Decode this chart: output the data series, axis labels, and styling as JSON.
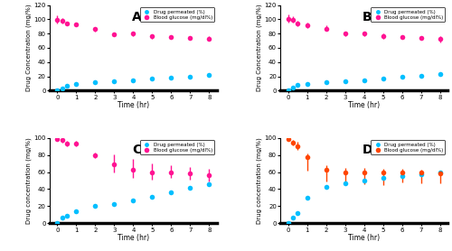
{
  "time": [
    0,
    0.25,
    0.5,
    1,
    2,
    3,
    4,
    5,
    6,
    7,
    8
  ],
  "panels": [
    {
      "label": "A",
      "drug_permeated": [
        0,
        3,
        7,
        10,
        12,
        13,
        15,
        17,
        18,
        20,
        22
      ],
      "blood_glucose": [
        99,
        98,
        94,
        93,
        86,
        79,
        80,
        76,
        75,
        74,
        73
      ],
      "bg_yerr_up": [
        6,
        4,
        3,
        3,
        3,
        3,
        3,
        3,
        3,
        3,
        3
      ],
      "bg_yerr_down": [
        5,
        4,
        3,
        3,
        3,
        3,
        3,
        3,
        3,
        3,
        3
      ]
    },
    {
      "label": "B",
      "drug_permeated": [
        0,
        4,
        8,
        10,
        12,
        13,
        15,
        17,
        19,
        21,
        23
      ],
      "blood_glucose": [
        100,
        99,
        94,
        92,
        87,
        80,
        80,
        76,
        75,
        74,
        72
      ],
      "bg_yerr_up": [
        7,
        5,
        4,
        4,
        4,
        3,
        3,
        4,
        3,
        3,
        4
      ],
      "bg_yerr_down": [
        5,
        4,
        4,
        4,
        3,
        3,
        3,
        4,
        3,
        3,
        4
      ]
    },
    {
      "label": "C",
      "drug_permeated": [
        0,
        7,
        9,
        14,
        21,
        23,
        27,
        31,
        36,
        42,
        46
      ],
      "blood_glucose": [
        99,
        97,
        93,
        93,
        79,
        69,
        63,
        60,
        60,
        58,
        56
      ],
      "bg_yerr_up": [
        2,
        2,
        3,
        3,
        4,
        12,
        12,
        10,
        8,
        8,
        8
      ],
      "bg_yerr_down": [
        2,
        3,
        3,
        3,
        3,
        10,
        10,
        9,
        7,
        7,
        7
      ]
    },
    {
      "label": "D",
      "drug_permeated": [
        0,
        7,
        12,
        30,
        43,
        47,
        50,
        53,
        55,
        57,
        60
      ],
      "blood_glucose": [
        99,
        94,
        90,
        77,
        63,
        60,
        60,
        59,
        60,
        59,
        58
      ],
      "bg_yerr_up": [
        2,
        3,
        5,
        5,
        5,
        5,
        5,
        5,
        4,
        4,
        4
      ],
      "bg_yerr_down": [
        2,
        3,
        4,
        15,
        14,
        14,
        14,
        14,
        12,
        12,
        11
      ]
    }
  ],
  "drug_color": "#00BFFF",
  "bg_color": "#FF1493",
  "bg_color_D": "#FF4500",
  "xlabel": "Time (hr)",
  "ylabel_AB": "Drug Concentration (mg/%)",
  "ylabel_CD": "Drug concentration (mg/%)",
  "legend_drug": "Drug permeated (%)",
  "legend_bg": "Blood glucose (mg/dl%)",
  "ylim_AB": [
    0,
    120
  ],
  "ylim_CD": [
    0,
    100
  ],
  "yticks_AB": [
    0,
    20,
    40,
    60,
    80,
    100,
    120
  ],
  "yticks_CD": [
    0,
    20,
    40,
    60,
    80,
    100
  ],
  "xticks": [
    0,
    1,
    2,
    3,
    4,
    5,
    6,
    7,
    8
  ],
  "background_color": "#FFFFFF",
  "border_color": "#CCCCCC"
}
